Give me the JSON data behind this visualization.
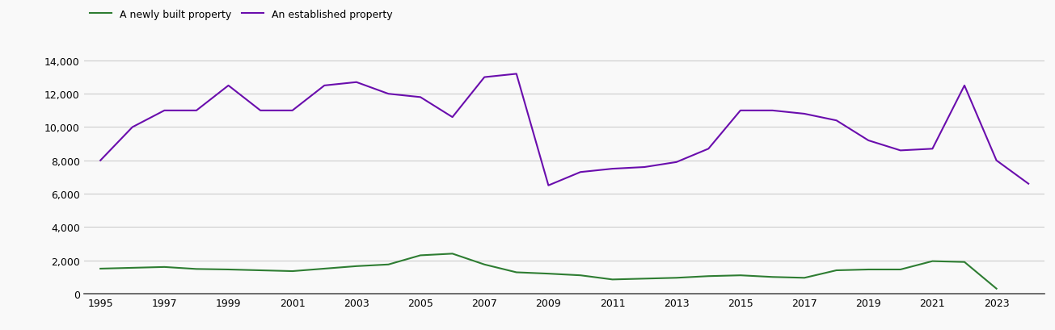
{
  "years": [
    1995,
    1996,
    1997,
    1998,
    1999,
    2000,
    2001,
    2002,
    2003,
    2004,
    2005,
    2006,
    2007,
    2008,
    2009,
    2010,
    2011,
    2012,
    2013,
    2014,
    2015,
    2016,
    2017,
    2018,
    2019,
    2020,
    2021,
    2022,
    2023,
    2024
  ],
  "new_homes": [
    1500,
    1550,
    1600,
    1480,
    1450,
    1400,
    1350,
    1500,
    1650,
    1750,
    2300,
    2400,
    1750,
    1280,
    1200,
    1100,
    850,
    900,
    950,
    1050,
    1100,
    1000,
    950,
    1400,
    1450,
    1450,
    1950,
    1900,
    300,
    null
  ],
  "established_homes": [
    8000,
    10000,
    11000,
    11000,
    12500,
    11000,
    11000,
    12500,
    12700,
    12000,
    11800,
    10600,
    13000,
    13200,
    6500,
    7300,
    7500,
    7600,
    7900,
    8700,
    11000,
    11000,
    10800,
    10400,
    9200,
    8600,
    8700,
    12500,
    8000,
    6600
  ],
  "new_color": "#2e7d32",
  "est_color": "#6a0dad",
  "new_label": "A newly built property",
  "est_label": "An established property",
  "xticks": [
    1995,
    1997,
    1999,
    2001,
    2003,
    2005,
    2007,
    2009,
    2011,
    2013,
    2015,
    2017,
    2019,
    2021,
    2023
  ],
  "yticks": [
    0,
    2000,
    4000,
    6000,
    8000,
    10000,
    12000,
    14000
  ],
  "xlim": [
    1994.5,
    2024.5
  ],
  "ylim": [
    0,
    14500
  ],
  "grid_color": "#cccccc",
  "grid_linewidth": 0.8,
  "line_linewidth": 1.5,
  "tick_labelsize": 9,
  "legend_fontsize": 9,
  "bg_color": "#f9f9f9",
  "fig_width": 13.05,
  "fig_height": 4.1,
  "dpi": 100
}
